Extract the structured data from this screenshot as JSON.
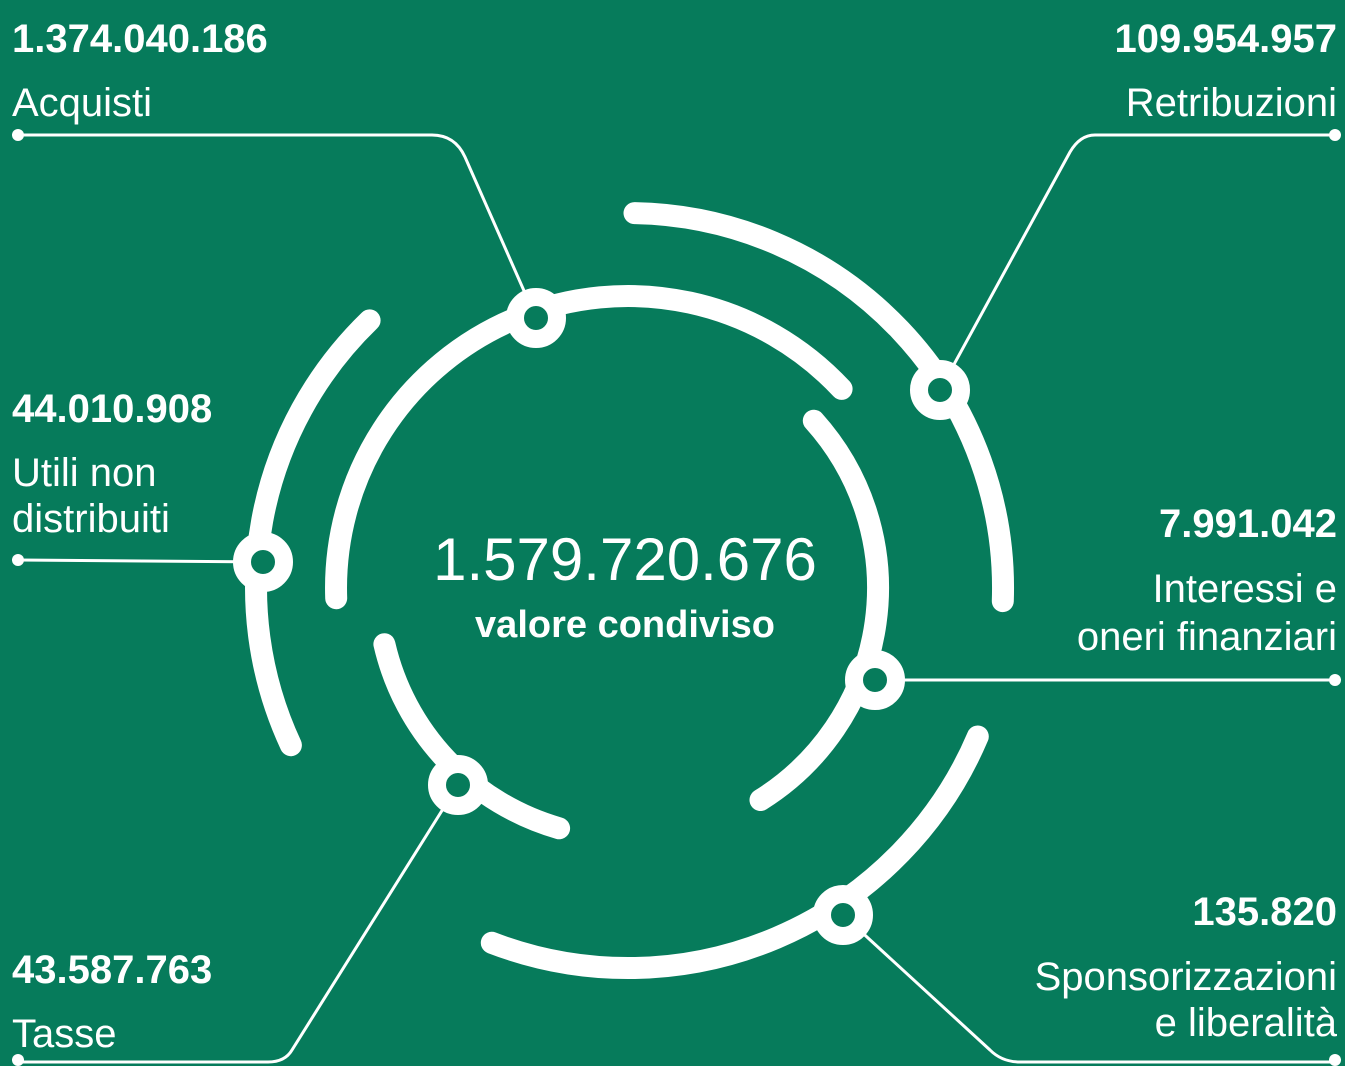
{
  "center": {
    "value": "1.579.720.676",
    "label": "valore condiviso"
  },
  "items": [
    {
      "value": "1.374.040.186",
      "label": [
        "Acquisti"
      ]
    },
    {
      "value": "109.954.957",
      "label": [
        "Retribuzioni"
      ]
    },
    {
      "value": "44.010.908",
      "label": [
        "Utili non",
        "distribuiti"
      ]
    },
    {
      "value": "7.991.042",
      "label": [
        "Interessi e",
        "oneri finanziari"
      ]
    },
    {
      "value": "43.587.763",
      "label": [
        "Tasse"
      ]
    },
    {
      "value": "135.820",
      "label": [
        "Sponsorizzazioni",
        "e liberalità"
      ]
    }
  ]
}
